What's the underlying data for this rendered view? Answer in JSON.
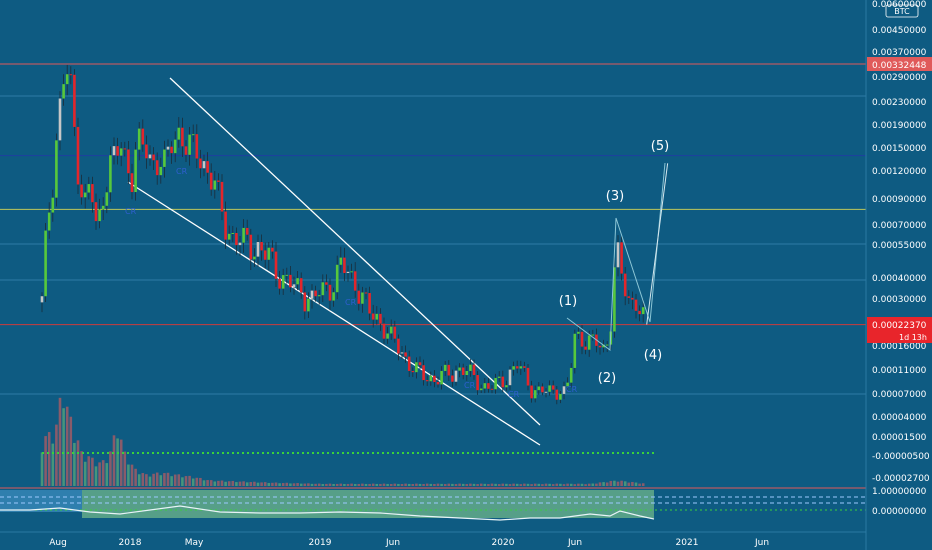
{
  "chart_data": {
    "type": "candlestick",
    "title": "",
    "currency": "BTC",
    "x_tick_labels": [
      "Aug",
      "2018",
      "May",
      "2019",
      "Jun",
      "2020",
      "Jun",
      "2021",
      "Jun"
    ],
    "y_tick_labels": [
      "0.00600000",
      "0.00450000",
      "0.00370000",
      "0.00290000",
      "0.00230000",
      "0.00190000",
      "0.00150000",
      "0.00120000",
      "0.00090000",
      "0.00070000",
      "0.00055000",
      "0.00040000",
      "0.00030000",
      "0.00016000",
      "0.00011000",
      "0.00007000",
      "0.00004000",
      "0.00001500",
      "-0.00000500",
      "-0.00002700"
    ],
    "oscillator_tick_labels": [
      "1.00000000",
      "0.00000000"
    ],
    "price_labels": [
      {
        "text": "0.00332448",
        "color": "#e05a5a"
      },
      {
        "text": "0.00022370",
        "color": "#e8252b"
      },
      {
        "text": "1d 13h",
        "color": "#e8252b"
      }
    ],
    "horizontal_levels": [
      {
        "price": 0.00332448,
        "color": "#e05a5a"
      },
      {
        "price": 0.0014,
        "color": "#1f3f9f"
      },
      {
        "price": 0.00082,
        "color": "#bfc85a"
      },
      {
        "price": 0.0002237,
        "color": "#cc3b3b"
      }
    ],
    "wave_labels": [
      "(1)",
      "(2)",
      "(3)",
      "(4)",
      "(5)"
    ],
    "pattern_marks": [
      "CR",
      "CR",
      "CR",
      "CR",
      "CR",
      "CR"
    ],
    "ohlc_path": [
      [
        "2017-07-20",
        0.00029
      ],
      [
        "2017-07-28",
        0.0011
      ],
      [
        "2017-08-04",
        0.0021
      ],
      [
        "2017-08-12",
        0.0028
      ],
      [
        "2017-08-20",
        0.003
      ],
      [
        "2017-08-28",
        0.0026
      ],
      [
        "2017-09-05",
        0.0018
      ],
      [
        "2017-09-14",
        0.0012
      ],
      [
        "2017-09-22",
        0.00095
      ],
      [
        "2017-09-30",
        0.00085
      ],
      [
        "2017-10-08",
        0.0011
      ],
      [
        "2017-10-16",
        0.0008
      ],
      [
        "2017-10-24",
        0.00058
      ],
      [
        "2017-11-01",
        0.0009
      ],
      [
        "2017-11-10",
        0.0011
      ],
      [
        "2017-11-20",
        0.0013
      ],
      [
        "2017-12-01",
        0.0014
      ],
      [
        "2017-12-12",
        0.0015
      ],
      [
        "2017-12-24",
        0.0013
      ],
      [
        "2018-01-05",
        0.0012
      ],
      [
        "2018-01-15",
        0.0016
      ],
      [
        "2018-01-28",
        0.0015
      ],
      [
        "2018-02-10",
        0.0013
      ],
      [
        "2018-02-22",
        0.0014
      ],
      [
        "2018-03-08",
        0.00125
      ],
      [
        "2018-03-22",
        0.0016
      ],
      [
        "2018-04-04",
        0.0018
      ],
      [
        "2018-04-16",
        0.0016
      ],
      [
        "2018-04-28",
        0.0015
      ],
      [
        "2018-05-10",
        0.0014
      ],
      [
        "2018-05-24",
        0.00125
      ],
      [
        "2018-06-08",
        0.0011
      ],
      [
        "2018-06-20",
        0.00085
      ],
      [
        "2018-07-02",
        0.00068
      ],
      [
        "2018-07-15",
        0.00062
      ],
      [
        "2018-07-30",
        0.00058
      ],
      [
        "2018-08-15",
        0.00057
      ],
      [
        "2018-08-30",
        0.00055
      ],
      [
        "2018-09-15",
        0.00052
      ],
      [
        "2018-10-01",
        0.00045
      ],
      [
        "2018-10-15",
        0.00042
      ],
      [
        "2018-11-01",
        0.00038
      ],
      [
        "2018-11-15",
        0.00035
      ],
      [
        "2018-12-01",
        0.00033
      ],
      [
        "2018-12-20",
        0.0003
      ],
      [
        "2019-01-05",
        0.00034
      ],
      [
        "2019-01-25",
        0.00036
      ],
      [
        "2019-02-15",
        0.00046
      ],
      [
        "2019-03-01",
        0.00041
      ],
      [
        "2019-03-15",
        0.00038
      ],
      [
        "2019-03-28",
        0.00032
      ],
      [
        "2019-04-12",
        0.00026
      ],
      [
        "2019-04-28",
        0.00024
      ],
      [
        "2019-05-10",
        0.00023
      ],
      [
        "2019-05-25",
        0.00019
      ],
      [
        "2019-06-10",
        0.00016
      ],
      [
        "2019-06-28",
        0.00013
      ],
      [
        "2019-07-15",
        0.00011
      ],
      [
        "2019-08-01",
        0.0001
      ],
      [
        "2019-08-20",
        9.5e-05
      ],
      [
        "2019-09-05",
        0.0001
      ],
      [
        "2019-09-25",
        0.000105
      ],
      [
        "2019-10-12",
        0.000115
      ],
      [
        "2019-11-01",
        0.0001
      ],
      [
        "2019-11-20",
        8.5e-05
      ],
      [
        "2019-12-08",
        8e-05
      ],
      [
        "2019-12-28",
        9e-05
      ],
      [
        "2020-01-15",
        0.000105
      ],
      [
        "2020-02-01",
        0.00012
      ],
      [
        "2020-02-15",
        0.0001
      ],
      [
        "2020-03-01",
        8e-05
      ],
      [
        "2020-03-20",
        7.3e-05
      ],
      [
        "2020-04-08",
        7.5e-05
      ],
      [
        "2020-04-28",
        7.8e-05
      ],
      [
        "2020-05-12",
        7.2e-05
      ],
      [
        "2020-05-22",
        9.8e-05
      ],
      [
        "2020-05-30",
        0.000185
      ],
      [
        "2020-06-08",
        0.00019
      ],
      [
        "2020-06-20",
        0.00018
      ],
      [
        "2020-07-05",
        0.00017
      ],
      [
        "2020-07-20",
        0.00016
      ],
      [
        "2020-07-28",
        0.00015
      ],
      [
        "2020-08-05",
        0.000195
      ],
      [
        "2020-08-12",
        0.0003
      ],
      [
        "2020-08-18",
        0.00055
      ],
      [
        "2020-08-24",
        0.00045
      ],
      [
        "2020-08-30",
        0.0004
      ],
      [
        "2020-09-06",
        0.00033
      ],
      [
        "2020-09-15",
        0.00028
      ],
      [
        "2020-09-24",
        0.00032
      ],
      [
        "2020-10-02",
        0.00027
      ],
      [
        "2020-10-10",
        0.00023
      ],
      [
        "2020-10-16",
        0.000224
      ]
    ],
    "projection_path": [
      [
        "2020-10-16",
        0.000224
      ],
      [
        "2020-11-25",
        0.0013
      ]
    ],
    "volume_path": [
      [
        "2017-07-20",
        0.4
      ],
      [
        "2017-08-01",
        0.55
      ],
      [
        "2017-08-10",
        1.0
      ],
      [
        "2017-08-20",
        0.7
      ],
      [
        "2017-09-05",
        0.5
      ],
      [
        "2017-09-20",
        0.3
      ],
      [
        "2017-10-10",
        0.25
      ],
      [
        "2017-11-01",
        0.2
      ],
      [
        "2017-11-20",
        0.3
      ],
      [
        "2017-12-05",
        0.55
      ],
      [
        "2017-12-20",
        0.3
      ],
      [
        "2018-01-10",
        0.15
      ],
      [
        "2018-02-01",
        0.1
      ],
      [
        "2018-03-01",
        0.12
      ],
      [
        "2018-04-01",
        0.1
      ],
      [
        "2018-05-01",
        0.08
      ],
      [
        "2018-06-01",
        0.05
      ],
      [
        "2018-08-01",
        0.04
      ],
      [
        "2018-10-01",
        0.03
      ],
      [
        "2019-01-01",
        0.02
      ],
      [
        "2019-04-01",
        0.02
      ],
      [
        "2019-07-01",
        0.02
      ],
      [
        "2019-10-01",
        0.02
      ],
      [
        "2020-01-01",
        0.02
      ],
      [
        "2020-04-01",
        0.02
      ],
      [
        "2020-07-01",
        0.02
      ],
      [
        "2020-08-20",
        0.05
      ],
      [
        "2020-10-16",
        0.02
      ]
    ]
  }
}
